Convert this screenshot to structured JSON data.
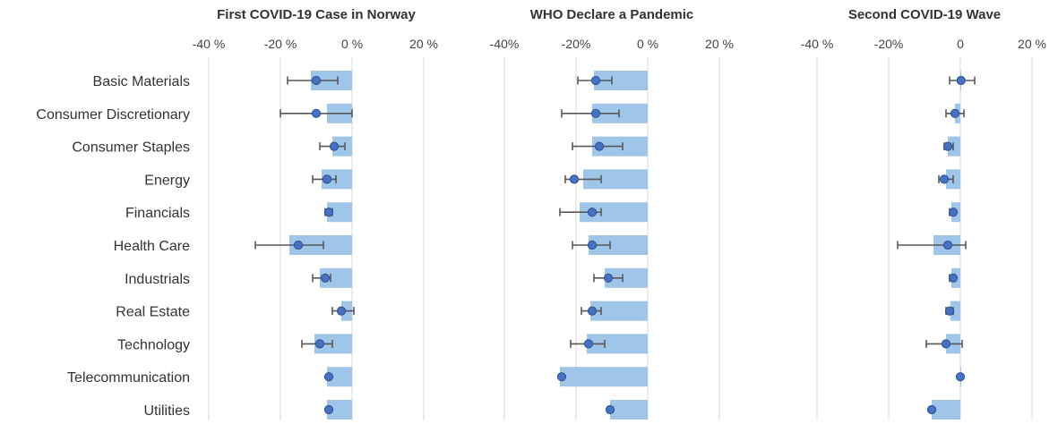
{
  "chart_data": {
    "type": "bar",
    "categories": [
      "Basic Materials",
      "Consumer Discretionary",
      "Consumer Staples",
      "Energy",
      "Financials",
      "Health Care",
      "Industrials",
      "Real Estate",
      "Technology",
      "Telecommunication",
      "Utilities"
    ],
    "xticks": [
      -40,
      -20,
      0,
      20
    ],
    "xtick_labels": [
      "-40 %",
      "-20 %",
      "0 %",
      "20 %"
    ],
    "xlim": [
      -40,
      20
    ],
    "grid": true,
    "colors": {
      "bar": "#9fc5e8",
      "marker": "#4472c4",
      "marker_edge": "#2f4f8f",
      "errorbar": "#595959",
      "grid": "#d9d9d9"
    },
    "panels": [
      {
        "title": "First COVID-19 Case in Norway",
        "xtick_labels": [
          "-40 %",
          "-20 %",
          "0 %",
          "20 %"
        ],
        "bars": [
          -11.5,
          -7,
          -5.5,
          -8.5,
          -7,
          -17.5,
          -9,
          -3,
          -10.5,
          -7,
          -7
        ],
        "points": [
          -10,
          -10,
          -5,
          -7,
          -6.5,
          -15,
          -7.5,
          -3,
          -9,
          -6.5,
          -6.5
        ],
        "err_low": [
          -18,
          -20,
          -9,
          -11,
          -7.5,
          -27,
          -11,
          -5.5,
          -14,
          null,
          null
        ],
        "err_high": [
          -4,
          0,
          -2,
          -4.5,
          -5.5,
          -8,
          -6,
          0.5,
          -5.5,
          null,
          null
        ]
      },
      {
        "title": "WHO Declare a Pandemic",
        "xtick_labels": [
          "-40%",
          "-20%",
          "0 %",
          "20 %"
        ],
        "bars": [
          -15,
          -15.5,
          -15.5,
          -18,
          -19,
          -16.5,
          -12,
          -16,
          -17,
          -24.5,
          -10.5
        ],
        "points": [
          -14.5,
          -14.5,
          -13.5,
          -20.5,
          -15.5,
          -15.5,
          -11,
          -15.5,
          -16.5,
          -24,
          -10.5
        ],
        "err_low": [
          -19.5,
          -24,
          -21,
          -23,
          -24.5,
          -21,
          -15,
          -18.5,
          -21.5,
          null,
          null
        ],
        "err_high": [
          -10,
          -8,
          -7,
          -13,
          -13,
          -10.5,
          -7,
          -13,
          -12,
          null,
          null
        ]
      },
      {
        "title": "Second COVID-19 Wave",
        "xtick_labels": [
          "-40 %",
          "-20%",
          "0",
          "20 %"
        ],
        "bars": [
          0.2,
          -1.5,
          -3.5,
          -4,
          -2.5,
          -7.5,
          -2.5,
          -2.8,
          -4,
          0,
          -8
        ],
        "points": [
          0.2,
          -1.5,
          -3.5,
          -4.5,
          -2,
          -3.5,
          -2,
          -3,
          -4,
          0,
          -8
        ],
        "err_low": [
          -3,
          -4,
          -4.5,
          -6,
          -3,
          -17.5,
          -3,
          -4,
          -9.5,
          null,
          null
        ],
        "err_high": [
          4,
          1,
          -2,
          -2,
          -1.5,
          1.5,
          -1.5,
          -2,
          0.5,
          null,
          null
        ]
      }
    ]
  }
}
